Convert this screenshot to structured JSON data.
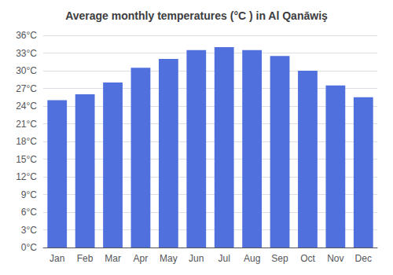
{
  "chart_data": {
    "type": "bar",
    "title": "Average monthly temperatures (°C ) in Al Qanāwiş",
    "categories": [
      "Jan",
      "Feb",
      "Mar",
      "Apr",
      "May",
      "Jun",
      "Jul",
      "Aug",
      "Sep",
      "Oct",
      "Nov",
      "Dec"
    ],
    "values": [
      25.0,
      26.0,
      28.0,
      30.5,
      32.0,
      33.5,
      34.0,
      33.5,
      32.5,
      30.0,
      27.5,
      25.5
    ],
    "ylim": [
      0,
      36
    ],
    "yticks": [
      {
        "value": 0,
        "label": "0°C"
      },
      {
        "value": 3,
        "label": "3°C"
      },
      {
        "value": 6,
        "label": "6°C"
      },
      {
        "value": 9,
        "label": "9°C"
      },
      {
        "value": 12,
        "label": "12°C"
      },
      {
        "value": 15,
        "label": "15°C"
      },
      {
        "value": 18,
        "label": "18°C"
      },
      {
        "value": 21,
        "label": "21°C"
      },
      {
        "value": 24,
        "label": "24°C"
      },
      {
        "value": 27,
        "label": "27°C"
      },
      {
        "value": 30,
        "label": "30°C"
      },
      {
        "value": 33,
        "label": "33°C"
      },
      {
        "value": 36,
        "label": "36°C"
      }
    ],
    "grid": true
  }
}
